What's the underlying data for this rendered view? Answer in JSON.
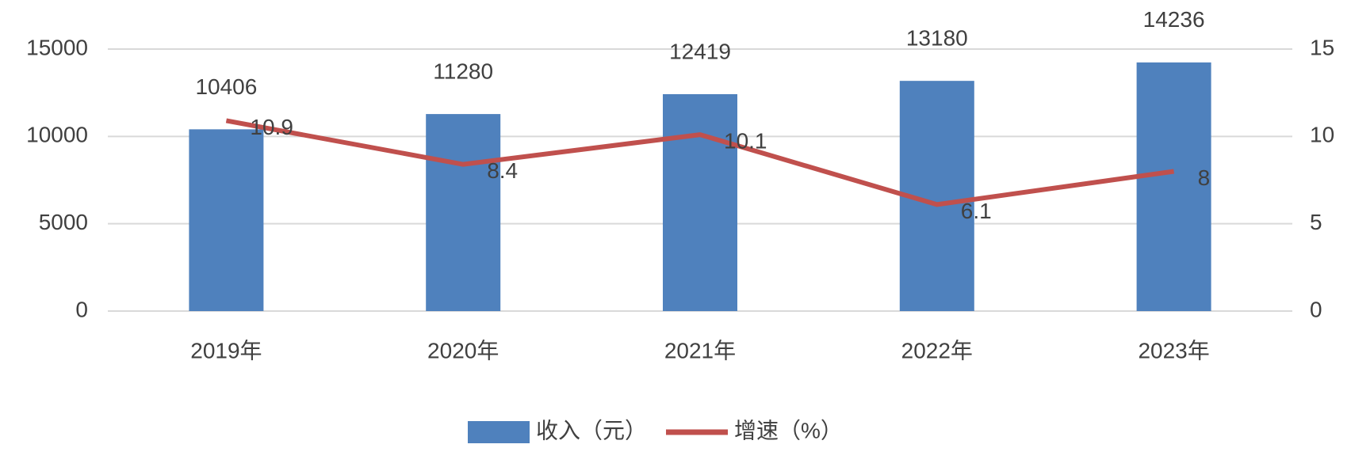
{
  "chart_data": {
    "type": "bar",
    "categories": [
      "2019年",
      "2020年",
      "2021年",
      "2022年",
      "2023年"
    ],
    "series": [
      {
        "name": "收入（元）",
        "type": "bar",
        "color": "#4f81bd",
        "values": [
          10406,
          11280,
          12419,
          13180,
          14236
        ]
      },
      {
        "name": "增速（%）",
        "type": "line",
        "axis": "y2",
        "color": "#c0504d",
        "values": [
          10.9,
          8.4,
          10.1,
          6.1,
          8
        ]
      }
    ],
    "ylim": [
      0,
      15000
    ],
    "yticks": [
      0,
      5000,
      10000,
      15000
    ],
    "y2lim": [
      0,
      15
    ],
    "y2ticks": [
      0,
      5,
      10,
      15
    ],
    "grid": true,
    "legend": "bottom"
  }
}
